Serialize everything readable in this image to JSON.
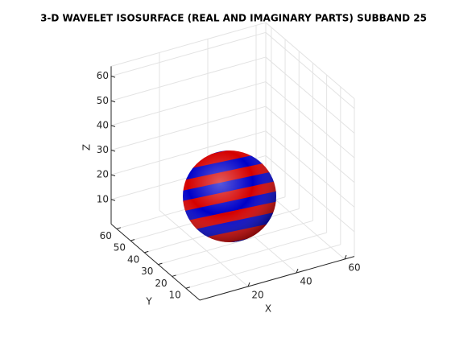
{
  "chart_data": {
    "type": "isosurface3d",
    "title": "3-D WAVELET ISOSURFACE (REAL AND IMAGINARY PARTS) SUBBAND 25",
    "xlabel": "X",
    "ylabel": "Y",
    "zlabel": "Z",
    "xlim": [
      0,
      64
    ],
    "ylim": [
      0,
      64
    ],
    "zlim": [
      0,
      64
    ],
    "xticks": [
      20,
      40,
      60
    ],
    "yticks": [
      10,
      20,
      30,
      40,
      50,
      60
    ],
    "zticks": [
      10,
      20,
      30,
      40,
      50,
      60
    ],
    "grid": true,
    "colors": [
      "#d40000",
      "#0000c8"
    ]
  }
}
